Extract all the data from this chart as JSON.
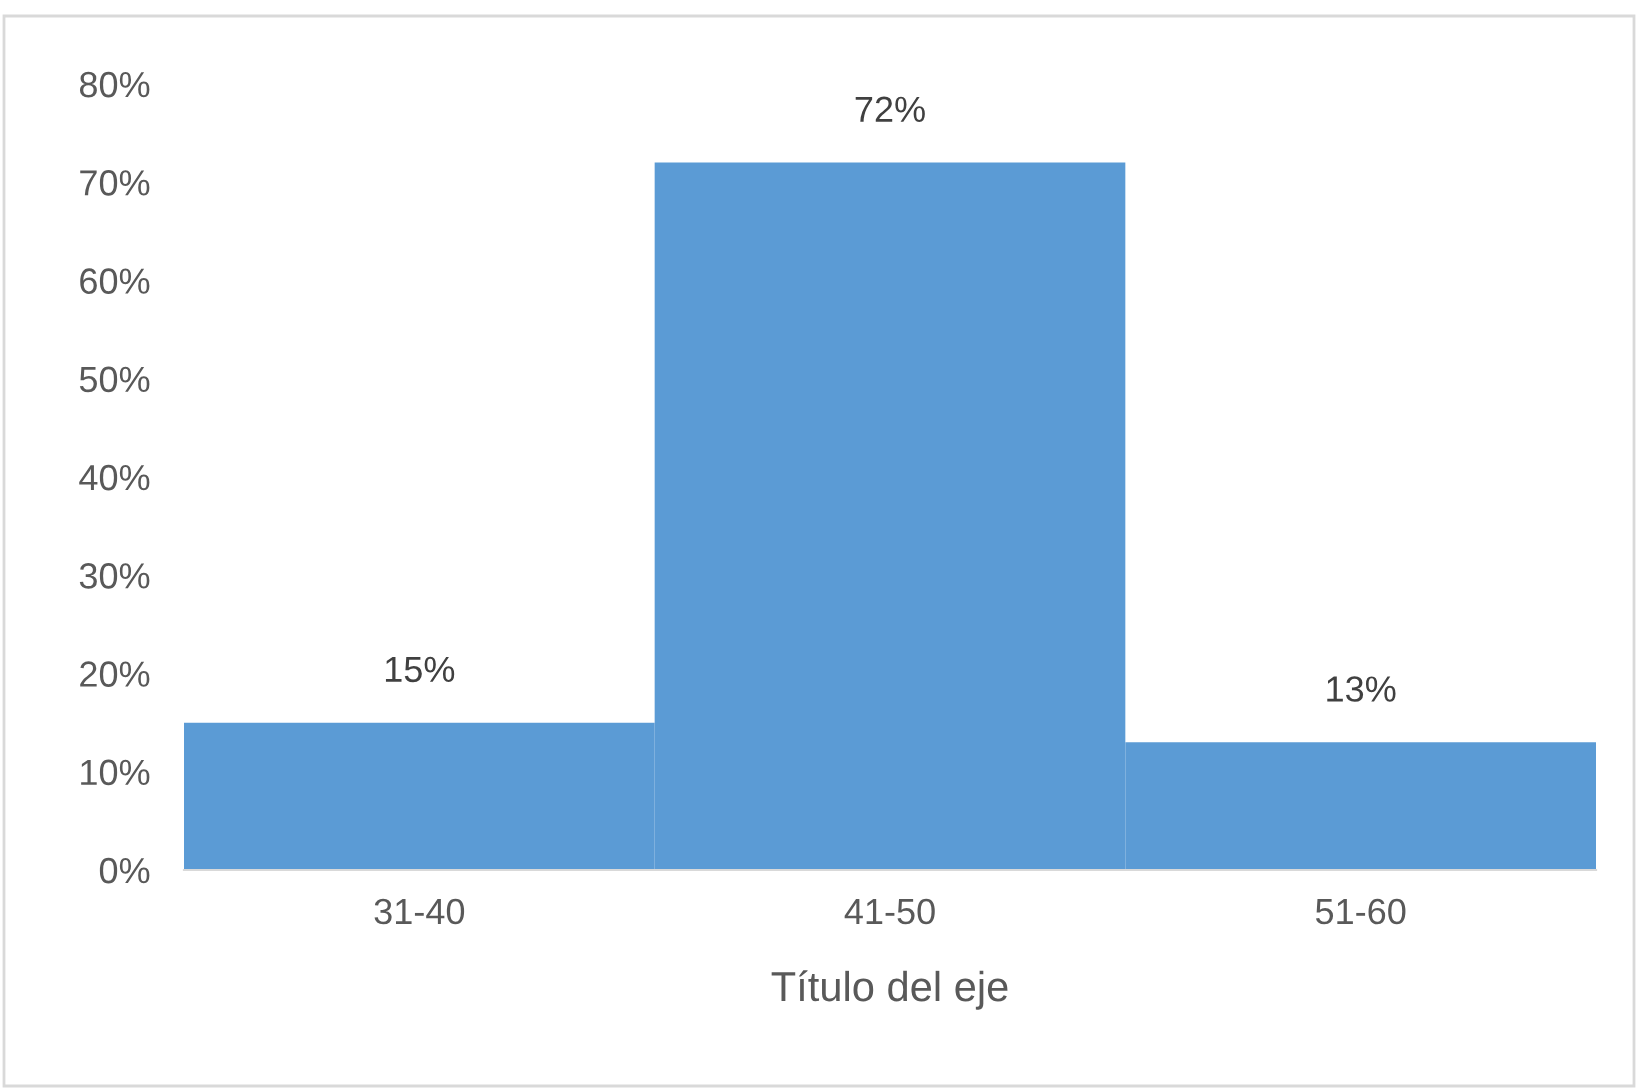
{
  "chart_data": {
    "type": "bar",
    "xlabel": "Título del eje",
    "categories": [
      "31-40",
      "41-50",
      "51-60"
    ],
    "values": [
      15,
      72,
      13
    ],
    "value_labels": [
      "15%",
      "72%",
      "13%"
    ],
    "color": "#5b9bd5",
    "ylim": [
      0,
      80
    ],
    "yticks": [
      {
        "value": 0,
        "label": "0%"
      },
      {
        "value": 10,
        "label": "10%"
      },
      {
        "value": 20,
        "label": "20%"
      },
      {
        "value": 30,
        "label": "30%"
      },
      {
        "value": 40,
        "label": "40%"
      },
      {
        "value": 50,
        "label": "50%"
      },
      {
        "value": 60,
        "label": "60%"
      },
      {
        "value": 70,
        "label": "70%"
      },
      {
        "value": 80,
        "label": "80%"
      }
    ],
    "grid": false
  }
}
